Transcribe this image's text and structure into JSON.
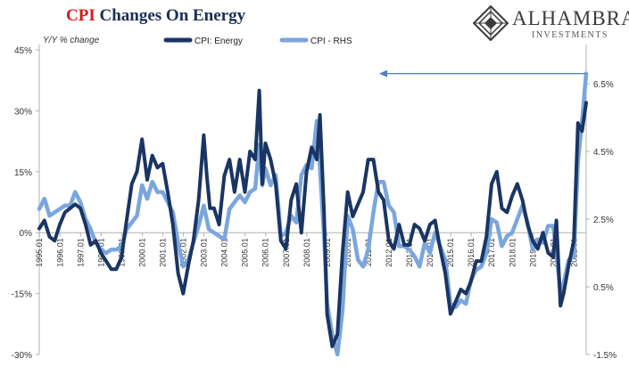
{
  "header": {
    "title_highlight": "CPI",
    "title_rest": "Changes On Energy",
    "brand_name": "ALHAMBRA",
    "brand_sub": "INVESTMENTS"
  },
  "colors": {
    "title_highlight": "#d7191c",
    "title": "#1b2f52",
    "energy": "#1a3563",
    "cpi": "#7aa6dc",
    "arrow": "#4a7fc0"
  },
  "chart_data": {
    "type": "line",
    "ylabel": "Y/Y % change",
    "left_axis": {
      "min": -30,
      "max": 45,
      "ticks": [
        "45%",
        "30%",
        "15%",
        "0%",
        "-15%",
        "-30%"
      ],
      "tick_values": [
        45,
        30,
        15,
        0,
        -15,
        -30
      ]
    },
    "right_axis": {
      "min": -1.5,
      "max": 7.5,
      "ticks": [
        "6.5%",
        "4.5%",
        "2.5%",
        "0.5%",
        "-1.5%"
      ],
      "tick_values": [
        6.5,
        4.5,
        2.5,
        0.5,
        -1.5
      ]
    },
    "x_ticks": [
      "1995.01",
      "1996.01",
      "1997.01",
      "1998.01",
      "1999.01",
      "2000.01",
      "2001.01",
      "2002.01",
      "2003.01",
      "2004.01",
      "2005.01",
      "2006.01",
      "2007.01",
      "2008.01",
      "2009.01",
      "2010.01",
      "2011.01",
      "2012.01",
      "2013.01",
      "2014.01",
      "2015.01",
      "2016.01",
      "2017.01",
      "2018.01",
      "2019.01",
      "2020.01",
      "2021.01"
    ],
    "x_range": [
      1995.0,
      2021.6
    ],
    "grid": false,
    "legend": "top",
    "annotation": "arrow pointing left from the latest CPI reading",
    "series": [
      {
        "name": "CPI: Energy",
        "axis": "left",
        "x": [
          1995.0,
          1995.25,
          1995.5,
          1995.75,
          1996.0,
          1996.25,
          1996.5,
          1996.75,
          1997.0,
          1997.25,
          1997.5,
          1997.75,
          1998.0,
          1998.25,
          1998.5,
          1998.75,
          1999.0,
          1999.25,
          1999.5,
          1999.75,
          2000.0,
          2000.25,
          2000.5,
          2000.75,
          2001.0,
          2001.25,
          2001.5,
          2001.75,
          2002.0,
          2002.25,
          2002.5,
          2002.75,
          2003.0,
          2003.15,
          2003.3,
          2003.5,
          2003.75,
          2004.0,
          2004.25,
          2004.5,
          2004.75,
          2005.0,
          2005.25,
          2005.5,
          2005.7,
          2005.85,
          2006.0,
          2006.25,
          2006.5,
          2006.75,
          2007.0,
          2007.25,
          2007.5,
          2007.75,
          2008.0,
          2008.25,
          2008.5,
          2008.65,
          2008.85,
          2009.0,
          2009.25,
          2009.5,
          2009.75,
          2010.0,
          2010.25,
          2010.5,
          2010.75,
          2011.0,
          2011.25,
          2011.5,
          2011.75,
          2012.0,
          2012.25,
          2012.5,
          2012.75,
          2013.0,
          2013.25,
          2013.5,
          2013.75,
          2014.0,
          2014.25,
          2014.5,
          2014.75,
          2015.0,
          2015.25,
          2015.5,
          2015.75,
          2016.0,
          2016.25,
          2016.5,
          2016.75,
          2017.0,
          2017.25,
          2017.5,
          2017.75,
          2018.0,
          2018.25,
          2018.5,
          2018.75,
          2019.0,
          2019.25,
          2019.5,
          2019.75,
          2020.0,
          2020.15,
          2020.35,
          2020.5,
          2020.75,
          2021.0,
          2021.2,
          2021.4,
          2021.6
        ],
        "y": [
          1,
          3,
          -1,
          -2,
          2,
          5,
          6,
          7,
          6,
          2,
          -3,
          -2,
          -5,
          -7,
          -9,
          -9,
          -6,
          3,
          12,
          15,
          23,
          13,
          19,
          16,
          17,
          10,
          2,
          -10,
          -15,
          -8,
          -2,
          8,
          24,
          14,
          6,
          6,
          2,
          14,
          18,
          10,
          18,
          10,
          20,
          18,
          35,
          12,
          22,
          18,
          12,
          -2,
          -4,
          8,
          12,
          0,
          15,
          21,
          18,
          29,
          5,
          -20,
          -28,
          -25,
          -5,
          10,
          4,
          7,
          10,
          18,
          18,
          10,
          8,
          -2,
          -4,
          2,
          -3,
          -3,
          2,
          1,
          -2,
          2,
          3,
          -4,
          -10,
          -20,
          -17,
          -14,
          -15,
          -12,
          -7,
          -7,
          -1,
          12,
          15,
          6,
          5,
          9,
          12,
          8,
          2,
          -2,
          -4,
          0,
          -5,
          -6,
          3,
          -18,
          -15,
          -8,
          -2,
          27,
          25,
          32
        ]
      },
      {
        "name": "CPI - RHS",
        "axis": "right",
        "x": [
          1995.0,
          1995.25,
          1995.5,
          1995.75,
          1996.0,
          1996.25,
          1996.5,
          1996.75,
          1997.0,
          1997.25,
          1997.5,
          1997.75,
          1998.0,
          1998.25,
          1998.5,
          1998.75,
          1999.0,
          1999.25,
          1999.5,
          1999.75,
          2000.0,
          2000.25,
          2000.5,
          2000.75,
          2001.0,
          2001.25,
          2001.5,
          2001.75,
          2002.0,
          2002.25,
          2002.5,
          2002.75,
          2003.0,
          2003.25,
          2003.5,
          2003.75,
          2004.0,
          2004.25,
          2004.5,
          2004.75,
          2005.0,
          2005.25,
          2005.5,
          2005.7,
          2005.85,
          2006.0,
          2006.25,
          2006.5,
          2006.75,
          2007.0,
          2007.25,
          2007.5,
          2007.75,
          2008.0,
          2008.25,
          2008.5,
          2008.65,
          2008.85,
          2009.0,
          2009.25,
          2009.5,
          2009.75,
          2010.0,
          2010.25,
          2010.5,
          2010.75,
          2011.0,
          2011.25,
          2011.5,
          2011.75,
          2012.0,
          2012.25,
          2012.5,
          2012.75,
          2013.0,
          2013.25,
          2013.5,
          2013.75,
          2014.0,
          2014.25,
          2014.5,
          2014.75,
          2015.0,
          2015.25,
          2015.5,
          2015.75,
          2016.0,
          2016.25,
          2016.5,
          2016.75,
          2017.0,
          2017.25,
          2017.5,
          2017.75,
          2018.0,
          2018.25,
          2018.5,
          2018.75,
          2019.0,
          2019.25,
          2019.5,
          2019.75,
          2020.0,
          2020.15,
          2020.35,
          2020.5,
          2020.75,
          2021.0,
          2021.2,
          2021.4,
          2021.6
        ],
        "y": [
          2.8,
          3.1,
          2.6,
          2.7,
          2.8,
          2.9,
          2.9,
          3.3,
          3.0,
          2.5,
          2.2,
          1.8,
          1.6,
          1.5,
          1.6,
          1.6,
          1.7,
          2.2,
          2.4,
          2.6,
          3.5,
          3.1,
          3.6,
          3.3,
          3.3,
          3.0,
          2.7,
          1.8,
          1.1,
          1.3,
          1.8,
          2.3,
          2.9,
          2.2,
          2.1,
          2.0,
          1.9,
          2.8,
          3.0,
          3.2,
          3.0,
          3.3,
          3.4,
          4.7,
          3.5,
          4.0,
          3.5,
          3.8,
          2.0,
          2.1,
          2.6,
          2.4,
          3.8,
          4.1,
          4.0,
          5.4,
          4.0,
          2.0,
          0.0,
          -0.9,
          -1.5,
          -0.2,
          2.6,
          2.2,
          1.3,
          1.1,
          1.6,
          2.7,
          3.6,
          3.6,
          2.9,
          2.7,
          1.7,
          1.7,
          1.6,
          1.4,
          1.1,
          1.8,
          1.5,
          2.1,
          1.7,
          1.3,
          0.0,
          -0.1,
          0.1,
          0.0,
          0.7,
          1.0,
          1.1,
          1.5,
          2.5,
          2.4,
          1.7,
          2.0,
          2.1,
          2.5,
          2.9,
          2.4,
          1.6,
          1.9,
          1.8,
          2.3,
          2.3,
          1.5,
          0.3,
          0.6,
          1.3,
          1.4,
          4.2,
          5.4,
          6.8
        ]
      }
    ]
  }
}
